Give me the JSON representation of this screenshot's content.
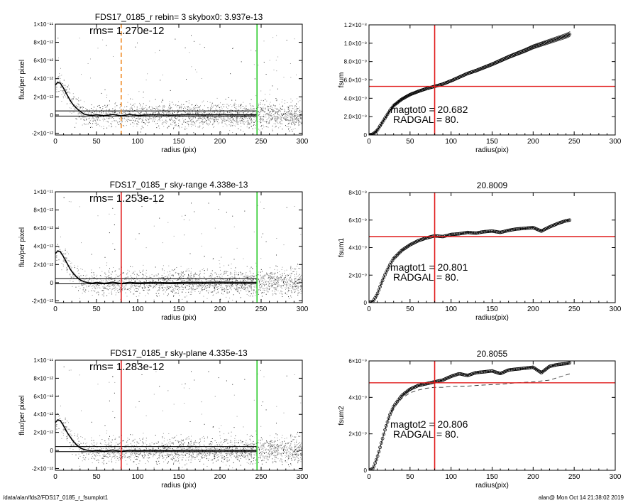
{
  "footer": {
    "left": "/data/alan/fds2/FDS17_0185_r_fsumplot1",
    "right": "alan@  Mon Oct 14 21:38:02 2019"
  },
  "colors": {
    "axis": "#000000",
    "scatter": "#9a9a9a",
    "profile": "#000000",
    "radgal_line_top": "#f08a24",
    "radgal_line": "#e11b1b",
    "sky_line": "#2ecc2e",
    "fsum_mark": "#e11b1b"
  },
  "chart_data": [
    {
      "type": "scatter",
      "title": "FDS17_0185_r rebin= 3    skybox0:  3.937e-13",
      "annotation": "rms= 1.270e-12",
      "xlabel": "radius (pix)",
      "ylabel": "flux/per pixel",
      "xlim": [
        0,
        300
      ],
      "ylim": [
        -2.2e-12,
        1e-11
      ],
      "xticks": [
        "0",
        "50",
        "100",
        "150",
        "200",
        "250",
        "300"
      ],
      "yticks": [
        {
          "value": -2e-12,
          "label": "-2×10⁻¹²"
        },
        {
          "value": 0,
          "label": "0"
        },
        {
          "value": 2e-12,
          "label": "2×10⁻¹²"
        },
        {
          "value": 4e-12,
          "label": "4×10⁻¹²"
        },
        {
          "value": 6e-12,
          "label": "6×10⁻¹²"
        },
        {
          "value": 8e-12,
          "label": "8×10⁻¹²"
        },
        {
          "value": 1e-11,
          "label": "1×10⁻¹¹"
        }
      ],
      "hlines": [
        4.5e-13,
        -1.2e-13
      ],
      "radgal_line": {
        "x": 80,
        "style": "dashed",
        "color": "radgal_line_top"
      },
      "sky_line": {
        "x": 245
      },
      "profile": {
        "x": [
          0,
          3,
          6,
          9,
          12,
          15,
          18,
          21,
          25,
          30,
          35,
          40,
          45,
          50,
          60,
          70,
          80,
          90,
          100,
          120,
          140,
          160,
          180,
          200,
          220,
          245
        ],
        "y": [
          3.3e-12,
          3.6e-12,
          3.5e-12,
          3.1e-12,
          2.6e-12,
          2.1e-12,
          1.6e-12,
          1.2e-12,
          8e-13,
          4e-13,
          1e-13,
          0,
          -5e-14,
          2e-14,
          -8e-14,
          6e-14,
          -1e-13,
          5e-14,
          -4e-14,
          3e-14,
          -2e-14,
          4e-14,
          1e-14,
          3e-14,
          2e-14,
          1e-14
        ]
      }
    },
    {
      "type": "line",
      "title": "",
      "annotation_lines": [
        "magtot0 =  20.682",
        "RADGAL =     80."
      ],
      "xlabel": "radius(pix)",
      "ylabel": "fsum",
      "xlim": [
        0,
        300
      ],
      "ylim": [
        0,
        1.2e-08
      ],
      "xticks": [
        "0",
        "50",
        "100",
        "150",
        "200",
        "250",
        "300"
      ],
      "yticks": [
        {
          "value": 0,
          "label": "0"
        },
        {
          "value": 2e-09,
          "label": "2.0×10⁻⁹"
        },
        {
          "value": 4e-09,
          "label": "4.0×10⁻⁹"
        },
        {
          "value": 6e-09,
          "label": "6.0×10⁻⁹"
        },
        {
          "value": 8e-09,
          "label": "8.0×10⁻⁹"
        },
        {
          "value": 1e-08,
          "label": "1.0×10⁻⁸"
        },
        {
          "value": 1.2e-08,
          "label": "1.2×10⁻⁸"
        }
      ],
      "vline_x": 80,
      "hline_y": 5.3e-09,
      "band_offset": 2.2e-10,
      "series": [
        {
          "x": [
            0,
            5,
            10,
            15,
            20,
            25,
            30,
            40,
            50,
            60,
            70,
            80,
            90,
            100,
            110,
            120,
            130,
            140,
            150,
            160,
            170,
            180,
            190,
            200,
            210,
            220,
            230,
            240,
            245
          ],
          "y": [
            0,
            1e-10,
            5e-10,
            1.2e-09,
            1.9e-09,
            2.6e-09,
            3.2e-09,
            3.9e-09,
            4.4e-09,
            4.75e-09,
            5.05e-09,
            5.3e-09,
            5.55e-09,
            5.9e-09,
            6.3e-09,
            6.7e-09,
            7e-09,
            7.35e-09,
            7.7e-09,
            8.1e-09,
            8.5e-09,
            8.85e-09,
            9.2e-09,
            9.6e-09,
            9.9e-09,
            1.02e-08,
            1.05e-08,
            1.08e-08,
            1.1e-08
          ]
        }
      ]
    },
    {
      "type": "scatter",
      "title": "FDS17_0185_r sky-range  4.338e-13",
      "annotation": "rms= 1.253e-12",
      "xlabel": "radius (pix)",
      "ylabel": "flux/per pixel",
      "xlim": [
        0,
        300
      ],
      "ylim": [
        -2.2e-12,
        1e-11
      ],
      "xticks": [
        "0",
        "50",
        "100",
        "150",
        "200",
        "250",
        "300"
      ],
      "yticks": [
        {
          "value": -2e-12,
          "label": "-2×10⁻¹²"
        },
        {
          "value": 0,
          "label": "0"
        },
        {
          "value": 2e-12,
          "label": "2×10⁻¹²"
        },
        {
          "value": 4e-12,
          "label": "4×10⁻¹²"
        },
        {
          "value": 6e-12,
          "label": "6×10⁻¹²"
        },
        {
          "value": 8e-12,
          "label": "8×10⁻¹²"
        },
        {
          "value": 1e-11,
          "label": "1×10⁻¹¹"
        }
      ],
      "hlines": [
        4.4e-13,
        -1.3e-13
      ],
      "radgal_line": {
        "x": 80,
        "style": "solid",
        "color": "radgal_line"
      },
      "sky_line": {
        "x": 245
      },
      "profile": {
        "x": [
          0,
          3,
          6,
          9,
          12,
          15,
          18,
          21,
          25,
          30,
          35,
          40,
          45,
          50,
          60,
          70,
          80,
          90,
          100,
          120,
          140,
          160,
          180,
          200,
          220,
          245
        ],
        "y": [
          3.2e-12,
          3.5e-12,
          3.4e-12,
          3e-12,
          2.5e-12,
          2e-12,
          1.5e-12,
          1.1e-12,
          7e-13,
          3e-13,
          1e-13,
          0,
          -6e-14,
          2e-14,
          -7e-14,
          5e-14,
          -9e-14,
          4e-14,
          -3e-14,
          3e-14,
          -2e-14,
          4e-14,
          2e-14,
          5e-14,
          4e-14,
          3e-14
        ]
      }
    },
    {
      "type": "line",
      "title": "20.8009",
      "annotation_lines": [
        "magtot1 =  20.801",
        "RADGAL =     80."
      ],
      "xlabel": "radius(pix)",
      "ylabel": "fsum1",
      "xlim": [
        0,
        300
      ],
      "ylim": [
        0,
        8e-09
      ],
      "xticks": [
        "0",
        "50",
        "100",
        "150",
        "200",
        "250",
        "300"
      ],
      "yticks": [
        {
          "value": 0,
          "label": "0"
        },
        {
          "value": 2e-09,
          "label": "2×10⁻⁹"
        },
        {
          "value": 4e-09,
          "label": "4×10⁻⁹"
        },
        {
          "value": 6e-09,
          "label": "6×10⁻⁹"
        },
        {
          "value": 8e-09,
          "label": "8×10⁻⁹"
        }
      ],
      "vline_x": 80,
      "hline_y": 4.8e-09,
      "series": [
        {
          "x": [
            0,
            5,
            10,
            15,
            20,
            25,
            30,
            40,
            50,
            60,
            70,
            80,
            90,
            100,
            110,
            120,
            130,
            140,
            150,
            160,
            170,
            180,
            190,
            200,
            210,
            220,
            230,
            240,
            245
          ],
          "y": [
            0,
            1e-10,
            6e-10,
            1.4e-09,
            2.1e-09,
            2.7e-09,
            3.2e-09,
            3.8e-09,
            4.2e-09,
            4.5e-09,
            4.7e-09,
            4.85e-09,
            4.8e-09,
            4.95e-09,
            5e-09,
            5.1e-09,
            5.05e-09,
            5.15e-09,
            5.2e-09,
            5.1e-09,
            5.25e-09,
            5.35e-09,
            5.4e-09,
            5.45e-09,
            5.2e-09,
            5.5e-09,
            5.75e-09,
            5.95e-09,
            6e-09
          ]
        }
      ]
    },
    {
      "type": "scatter",
      "title": "FDS17_0185_r sky-plane  4.335e-13",
      "annotation": "rms= 1.283e-12",
      "xlabel": "radius (pix)",
      "ylabel": "flux/per pixel",
      "xlim": [
        0,
        300
      ],
      "ylim": [
        -2.2e-12,
        1e-11
      ],
      "xticks": [
        "0",
        "50",
        "100",
        "150",
        "200",
        "250",
        "300"
      ],
      "yticks": [
        {
          "value": -2e-12,
          "label": "-2×10⁻¹²"
        },
        {
          "value": 0,
          "label": "0"
        },
        {
          "value": 2e-12,
          "label": "2×10⁻¹²"
        },
        {
          "value": 4e-12,
          "label": "4×10⁻¹²"
        },
        {
          "value": 6e-12,
          "label": "6×10⁻¹²"
        },
        {
          "value": 8e-12,
          "label": "8×10⁻¹²"
        },
        {
          "value": 1e-11,
          "label": "1×10⁻¹¹"
        }
      ],
      "hlines": [
        4.3e-13,
        -1.3e-13
      ],
      "radgal_line": {
        "x": 80,
        "style": "solid",
        "color": "radgal_line"
      },
      "sky_line": {
        "x": 245
      },
      "profile": {
        "x": [
          0,
          3,
          6,
          9,
          12,
          15,
          18,
          21,
          25,
          30,
          35,
          40,
          45,
          50,
          60,
          70,
          80,
          90,
          100,
          120,
          140,
          160,
          180,
          200,
          220,
          245
        ],
        "y": [
          3.1e-12,
          3.4e-12,
          3.3e-12,
          2.9e-12,
          2.4e-12,
          1.9e-12,
          1.5e-12,
          1.1e-12,
          7e-13,
          3e-13,
          1e-13,
          0,
          -5e-14,
          1e-14,
          -8e-14,
          5e-14,
          -1e-13,
          3e-14,
          -3e-14,
          2e-14,
          -2e-14,
          3e-14,
          1e-14,
          3e-14,
          2e-14,
          2e-14
        ]
      }
    },
    {
      "type": "line",
      "title": "20.8055",
      "annotation_lines": [
        "magtot2 =  20.806",
        "RADGAL =     80."
      ],
      "xlabel": "radius(pix)",
      "ylabel": "fsum2",
      "xlim": [
        0,
        300
      ],
      "ylim": [
        0,
        6e-09
      ],
      "xticks": [
        "0",
        "50",
        "100",
        "150",
        "200",
        "250",
        "300"
      ],
      "yticks": [
        {
          "value": 0,
          "label": "0"
        },
        {
          "value": 2e-09,
          "label": "2×10⁻⁹"
        },
        {
          "value": 4e-09,
          "label": "4×10⁻⁹"
        },
        {
          "value": 6e-09,
          "label": "6×10⁻⁹"
        }
      ],
      "vline_x": 80,
      "hline_y": 4.8e-09,
      "series": [
        {
          "style": "markers",
          "x": [
            0,
            5,
            10,
            15,
            20,
            25,
            30,
            40,
            50,
            60,
            70,
            80,
            90,
            100,
            110,
            120,
            130,
            140,
            150,
            160,
            170,
            180,
            190,
            200,
            210,
            220,
            230,
            240,
            245
          ],
          "y": [
            0,
            1e-10,
            7e-10,
            1.5e-09,
            2.3e-09,
            3e-09,
            3.5e-09,
            4.1e-09,
            4.45e-09,
            4.65e-09,
            4.75e-09,
            4.85e-09,
            4.95e-09,
            5.15e-09,
            5.3e-09,
            5.2e-09,
            5.35e-09,
            5.4e-09,
            5.45e-09,
            5.3e-09,
            5.5e-09,
            5.55e-09,
            5.6e-09,
            5.65e-09,
            5.35e-09,
            5.7e-09,
            5.8e-09,
            5.85e-09,
            5.9e-09
          ]
        },
        {
          "style": "dashed",
          "x": [
            0,
            5,
            10,
            15,
            20,
            25,
            30,
            40,
            50,
            60,
            70,
            80,
            90,
            100,
            120,
            140,
            160,
            180,
            200,
            220,
            245
          ],
          "y": [
            0,
            1e-10,
            7e-10,
            1.5e-09,
            2.3e-09,
            2.95e-09,
            3.4e-09,
            3.95e-09,
            4.25e-09,
            4.4e-09,
            4.5e-09,
            4.55e-09,
            4.55e-09,
            4.6e-09,
            4.62e-09,
            4.68e-09,
            4.72e-09,
            4.8e-09,
            4.85e-09,
            4.95e-09,
            5.3e-09
          ]
        }
      ]
    }
  ]
}
